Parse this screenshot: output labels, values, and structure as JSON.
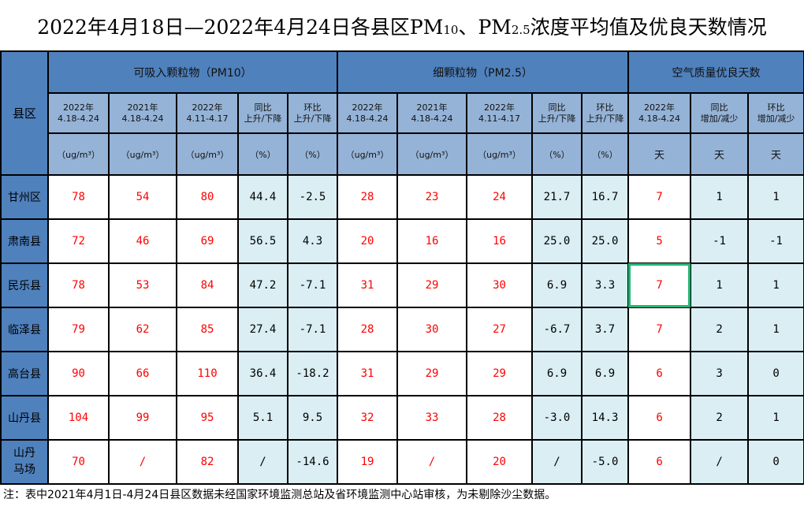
{
  "title": {
    "main": "2022年4月18日—2022年4月24日各县区PM",
    "sub1": "10",
    "mid": "、PM",
    "sub2": "2.5",
    "tail": "浓度平均值及优良天数情况"
  },
  "header": {
    "county": "县区",
    "groups": [
      "可吸入颗粒物（PM10）",
      "细颗粒物（PM2.5）",
      "空气质量优良天数"
    ],
    "period_cols": [
      [
        "2022年",
        "4.18-4.24"
      ],
      [
        "2021年",
        "4.18-4.24"
      ],
      [
        "2022年",
        "4.11-4.17"
      ],
      [
        "同比",
        "上升/下降"
      ],
      [
        "环比",
        "上升/下降"
      ],
      [
        "2022年",
        "4.18-4.24"
      ],
      [
        "2021年",
        "4.18-4.24"
      ],
      [
        "2022年",
        "4.11-4.17"
      ],
      [
        "同比",
        "上升/下降"
      ],
      [
        "环比",
        "上升/下降"
      ],
      [
        "2022年",
        "4.18-4.24"
      ],
      [
        "同比",
        "增加/减少"
      ],
      [
        "环比",
        "增加/减少"
      ]
    ],
    "units": [
      "（ug/m³）",
      "（ug/m³）",
      "（ug/m³）",
      "（%）",
      "（%）",
      "（ug/m³）",
      "（ug/m³）",
      "（ug/m³）",
      "（%）",
      "（%）",
      "天",
      "天",
      "天"
    ]
  },
  "rows": [
    {
      "name": "甘州区",
      "values": [
        "78",
        "54",
        "80",
        "44.4",
        "-2.5",
        "28",
        "23",
        "24",
        "21.7",
        "16.7",
        "7",
        "1",
        "1"
      ]
    },
    {
      "name": "肃南县",
      "values": [
        "72",
        "46",
        "69",
        "56.5",
        "4.3",
        "20",
        "16",
        "16",
        "25.0",
        "25.0",
        "5",
        "-1",
        "-1"
      ]
    },
    {
      "name": "民乐县",
      "values": [
        "78",
        "53",
        "84",
        "47.2",
        "-7.1",
        "31",
        "29",
        "30",
        "6.9",
        "3.3",
        "7",
        "1",
        "1"
      ]
    },
    {
      "name": "临泽县",
      "values": [
        "79",
        "62",
        "85",
        "27.4",
        "-7.1",
        "28",
        "30",
        "27",
        "-6.7",
        "3.7",
        "7",
        "2",
        "1"
      ]
    },
    {
      "name": "高台县",
      "values": [
        "90",
        "66",
        "110",
        "36.4",
        "-18.2",
        "31",
        "29",
        "29",
        "6.9",
        "6.9",
        "6",
        "3",
        "0"
      ]
    },
    {
      "name": "山丹县",
      "values": [
        "104",
        "99",
        "95",
        "5.1",
        "9.5",
        "32",
        "33",
        "28",
        "-3.0",
        "14.3",
        "6",
        "2",
        "1"
      ]
    },
    {
      "name": "山丹马场",
      "name_lines": [
        "山丹",
        "马场"
      ],
      "values": [
        "70",
        "/",
        "82",
        "/",
        "-14.6",
        "19",
        "/",
        "20",
        "/",
        "-5.0",
        "6",
        "/",
        "0"
      ]
    }
  ],
  "selected_cell": {
    "row": "民乐县",
    "column": "空气质量优良天数 2022年4.18-4.24"
  },
  "note": "注：表中2021年4月1日-4月24日县区数据未经国家环境监测总站及省环境监测中心站审核，为未剔除沙尘数据。",
  "colors": {
    "header": "#4f81bd",
    "subheader": "#95b3d7",
    "compare_cell": "#daeef3",
    "value_text": "#ff0000",
    "selection": "#21b573"
  }
}
